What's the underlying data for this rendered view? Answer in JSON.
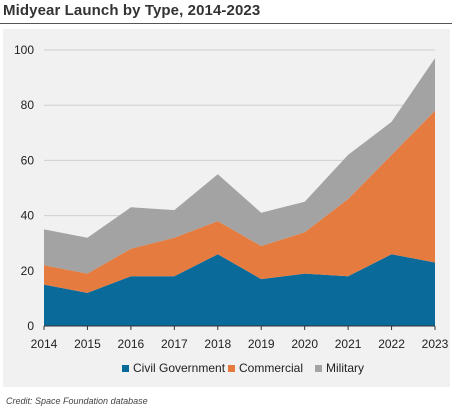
{
  "title": "Midyear Launch by Type, 2014-2023",
  "credit": "Credit: Space Foundation database",
  "chart_data": {
    "type": "area",
    "stacked": true,
    "x": [
      "2014",
      "2015",
      "2016",
      "2017",
      "2018",
      "2019",
      "2020",
      "2021",
      "2022",
      "2023"
    ],
    "series": [
      {
        "name": "Civil Government",
        "color": "#0a6a9a",
        "values": [
          15,
          12,
          18,
          18,
          26,
          17,
          19,
          18,
          26,
          23
        ]
      },
      {
        "name": "Commercial",
        "color": "#e57b3f",
        "values": [
          7,
          7,
          10,
          14,
          12,
          12,
          15,
          28,
          36,
          55
        ]
      },
      {
        "name": "Military",
        "color": "#a3a3a3",
        "values": [
          13,
          13,
          15,
          10,
          17,
          12,
          11,
          16,
          12,
          19
        ]
      }
    ],
    "ylim": [
      0,
      100
    ],
    "yticks": [
      "0",
      "20",
      "40",
      "60",
      "80",
      "100"
    ],
    "grid": "horizontal",
    "legend": "bottom-center"
  }
}
